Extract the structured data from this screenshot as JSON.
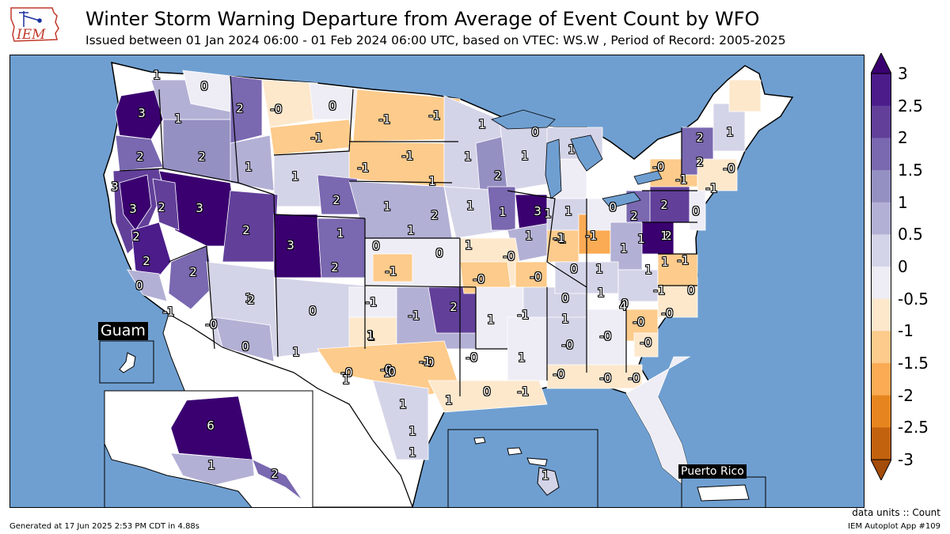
{
  "header": {
    "title": "Winter Storm Warning Departure from Average of Event Count by WFO",
    "subtitle": "Issued between 01 Jan 2024 06:00 - 01 Feb 2024 06:00 UTC, based on VTEC: WS.W  , Period of Record: 2005-2025",
    "logo_text": "IEM"
  },
  "colorbar": {
    "colors": [
      "#a44c0a",
      "#c3620e",
      "#e6851f",
      "#fbab54",
      "#fdcb8b",
      "#fde8cc",
      "#eeedf5",
      "#d4d4e8",
      "#b3b0d5",
      "#9590c2",
      "#7a68b0",
      "#62409a",
      "#4b1c8a",
      "#3a0070"
    ],
    "ticks": [
      "3",
      "2.5",
      "2",
      "1.5",
      "1",
      "0.5",
      "0",
      "-0.5",
      "-1",
      "-1.5",
      "-2",
      "-2.5",
      "-3"
    ]
  },
  "map_labels": [
    {
      "t": "1",
      "c": "#d4d4e8"
    },
    {
      "t": "0",
      "c": "#eeedf5"
    },
    {
      "t": "3",
      "c": "#3a0070"
    },
    {
      "t": "1",
      "c": "#b3b0d5"
    },
    {
      "t": "2",
      "c": "#7a68b0"
    },
    {
      "t": "-0",
      "c": "#fde8cc"
    },
    {
      "t": "0",
      "c": "#eeedf5"
    },
    {
      "t": "-1",
      "c": "#fdcb8b"
    },
    {
      "t": "-1",
      "c": "#fdcb8b"
    },
    {
      "t": "2",
      "c": "#7a68b0"
    },
    {
      "t": "2",
      "c": "#9590c2"
    },
    {
      "t": "1",
      "c": "#b3b0d5"
    },
    {
      "t": "-1",
      "c": "#fdcb8b"
    },
    {
      "t": "-1",
      "c": "#fdcb8b"
    },
    {
      "t": "-1",
      "c": "#fdcb8b"
    },
    {
      "t": "1",
      "c": "#d4d4e8"
    },
    {
      "t": "0",
      "c": "#eeedf5"
    },
    {
      "t": "1",
      "c": "#d4d4e8"
    },
    {
      "t": "1",
      "c": "#b3b0d5"
    },
    {
      "t": "1",
      "c": "#b3b0d5"
    },
    {
      "t": "2",
      "c": "#7a68b0"
    },
    {
      "t": "1",
      "c": "#b3b0d5"
    },
    {
      "t": "-0",
      "c": "#fde8cc"
    },
    {
      "t": "1",
      "c": "#d4d4e8"
    },
    {
      "t": "2",
      "c": "#7a68b0"
    },
    {
      "t": "2",
      "c": "#7a68b0"
    },
    {
      "t": "1",
      "c": "#d4d4e8"
    },
    {
      "t": "3",
      "c": "#3a0070"
    },
    {
      "t": "3",
      "c": "#3a0070"
    },
    {
      "t": "2",
      "c": "#62409a"
    },
    {
      "t": "3",
      "c": "#3a0070"
    },
    {
      "t": "1",
      "c": "#d4d4e8"
    },
    {
      "t": "2",
      "c": "#9590c2"
    },
    {
      "t": "1",
      "c": "#b3b0d5"
    },
    {
      "t": "1",
      "c": "#b3b0d5"
    },
    {
      "t": "2",
      "c": "#7a68b0"
    },
    {
      "t": "1",
      "c": "#b3b0d5"
    },
    {
      "t": "2",
      "c": "#7a68b0"
    },
    {
      "t": "3",
      "c": "#3a0070"
    },
    {
      "t": "1",
      "c": "#b3b0d5"
    },
    {
      "t": "0",
      "c": "#eeedf5"
    },
    {
      "t": "-0",
      "c": "#fde8cc"
    },
    {
      "t": "-0",
      "c": "#fde8cc"
    },
    {
      "t": "-1",
      "c": "#fdcb8b"
    },
    {
      "t": "-0",
      "c": "#fde8cc"
    },
    {
      "t": "2",
      "c": "#62409a"
    },
    {
      "t": "1",
      "c": "#b3b0d5"
    },
    {
      "t": "3",
      "c": "#4b1c8a"
    },
    {
      "t": "2",
      "c": "#62409a"
    },
    {
      "t": "1",
      "c": "#b3b0d5"
    },
    {
      "t": "3",
      "c": "#3a0070"
    },
    {
      "t": "2",
      "c": "#7a68b0"
    },
    {
      "t": "2",
      "c": "#62409a"
    },
    {
      "t": "1",
      "c": "#d4d4e8"
    },
    {
      "t": "0",
      "c": "#eeedf5"
    },
    {
      "t": "0",
      "c": "#eeedf5"
    },
    {
      "t": "1",
      "c": "#b3b0d5"
    },
    {
      "t": "2",
      "c": "#7a68b0"
    },
    {
      "t": "-1",
      "c": "#fdcb8b"
    },
    {
      "t": "0",
      "c": "#eeedf5"
    },
    {
      "t": "1",
      "c": "#d4d4e8"
    },
    {
      "t": "-0",
      "c": "#fde8cc"
    },
    {
      "t": "-1",
      "c": "#fdcb8b"
    },
    {
      "t": "1",
      "c": "#b3b0d5"
    },
    {
      "t": "-1",
      "c": "#fdcb8b"
    },
    {
      "t": "-1",
      "c": "#fbab54"
    },
    {
      "t": "0",
      "c": "#eeedf5"
    },
    {
      "t": "2",
      "c": "#7a68b0"
    },
    {
      "t": "2",
      "c": "#7a68b0"
    },
    {
      "t": "-1",
      "c": "#fdcb8b"
    },
    {
      "t": "1",
      "c": "#b3b0d5"
    },
    {
      "t": "1",
      "c": "#d4d4e8"
    },
    {
      "t": "1",
      "c": "#b3b0d5"
    },
    {
      "t": "1",
      "c": "#b3b0d5"
    },
    {
      "t": "0",
      "c": "#eeedf5"
    },
    {
      "t": "1",
      "c": "#d4d4e8"
    },
    {
      "t": "0",
      "c": "#eeedf5"
    },
    {
      "t": "4",
      "c": "#3a0070"
    },
    {
      "t": "-1",
      "c": "#fdcb8b"
    },
    {
      "t": "1",
      "c": "#d4d4e8"
    },
    {
      "t": "-1",
      "c": "#fdcb8b"
    },
    {
      "t": "1",
      "c": "#d4d4e8"
    },
    {
      "t": "-1",
      "c": "#fdcb8b"
    },
    {
      "t": "-1",
      "c": "#fdcb8b"
    },
    {
      "t": "0",
      "c": "#eeedf5"
    },
    {
      "t": "-0",
      "c": "#fde8cc"
    },
    {
      "t": "-1",
      "c": "#fdcb8b"
    },
    {
      "t": "0",
      "c": "#eeedf5"
    },
    {
      "t": "1",
      "c": "#d4d4e8"
    },
    {
      "t": "1",
      "c": "#d4d4e8"
    },
    {
      "t": "0",
      "c": "#eeedf5"
    },
    {
      "t": "1",
      "c": "#d4d4e8"
    },
    {
      "t": "-0",
      "c": "#fde8cc"
    },
    {
      "t": "-0",
      "c": "#fde8cc"
    },
    {
      "t": "-0",
      "c": "#fde8cc"
    },
    {
      "t": "1",
      "c": "#d4d4e8"
    },
    {
      "t": "-1",
      "c": "#fdcb8b"
    },
    {
      "t": "-0",
      "c": "#fde8cc"
    },
    {
      "t": "-0",
      "c": "#fde8cc"
    },
    {
      "t": "-0",
      "c": "#fde8cc"
    },
    {
      "t": "-0",
      "c": "#fde8cc"
    },
    {
      "t": "1",
      "c": "#d4d4e8"
    },
    {
      "t": "-0",
      "c": "#fde8cc"
    },
    {
      "t": "-0",
      "c": "#fde8cc"
    },
    {
      "t": "-0",
      "c": "#fde8cc"
    },
    {
      "t": "-0",
      "c": "#fde8cc"
    },
    {
      "t": "0",
      "c": "#eeedf5"
    },
    {
      "t": "-1",
      "c": "#fdcb8b"
    },
    {
      "t": "1",
      "c": "#d4d4e8"
    },
    {
      "t": "1",
      "c": "#d4d4e8"
    },
    {
      "t": "1",
      "c": "#b3b0d5"
    },
    {
      "t": "1",
      "c": "#b3b0d5"
    },
    {
      "t": "2",
      "c": "#7a68b0"
    },
    {
      "t": "2",
      "c": "#7a68b0"
    },
    {
      "t": "1",
      "c": "#d4d4e8"
    },
    {
      "t": "1",
      "c": "#d4d4e8"
    },
    {
      "t": "0",
      "c": "#eeedf5"
    },
    {
      "t": "-0",
      "c": "#fde8cc"
    },
    {
      "t": "-1",
      "c": "#fdcb8b"
    },
    {
      "t": "0",
      "c": "#eeedf5"
    }
  ],
  "insets": {
    "guam": {
      "title": "Guam"
    },
    "alaska": {
      "labels": [
        {
          "t": "6",
          "c": "#3a0070"
        },
        {
          "t": "1",
          "c": "#b3b0d5"
        },
        {
          "t": "2",
          "c": "#7a68b0"
        }
      ]
    },
    "hawaii": {
      "labels": [
        {
          "t": "1",
          "c": "#d4d4e8"
        }
      ]
    },
    "puerto_rico": {
      "title": "Puerto Rico"
    }
  },
  "footer": {
    "generated": "Generated at 17 Jun 2025 2:53 PM CDT in 4.88s",
    "units": "data units :: Count",
    "app": "IEM Autoplot App #109"
  }
}
